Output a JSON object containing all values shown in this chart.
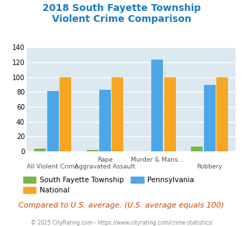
{
  "title_line1": "2018 South Fayette Township",
  "title_line2": "Violent Crime Comparison",
  "title_color": "#1a7abf",
  "x_labels_top": [
    "",
    "Rape",
    "Murder & Mans...",
    ""
  ],
  "x_labels_bottom": [
    "All Violent Crime",
    "Aggravated Assault",
    "",
    "Robbery"
  ],
  "south_fayette": [
    4,
    2,
    0,
    7
  ],
  "pennsylvania": [
    81,
    83,
    124,
    90
  ],
  "national": [
    100,
    100,
    100,
    100
  ],
  "color_sf": "#7ab648",
  "color_pa": "#4da6e8",
  "color_nat": "#f5a623",
  "ylim": [
    0,
    140
  ],
  "yticks": [
    0,
    20,
    40,
    60,
    80,
    100,
    120,
    140
  ],
  "plot_bg": "#dce9f0",
  "legend_sf": "South Fayette Township",
  "legend_nat": "National",
  "legend_pa": "Pennsylvania",
  "footer_text": "Compared to U.S. average. (U.S. average equals 100)",
  "footer_color": "#cc4400",
  "copyright_text": "© 2025 CityRating.com - https://www.cityrating.com/crime-statistics/",
  "copyright_color": "#888888"
}
